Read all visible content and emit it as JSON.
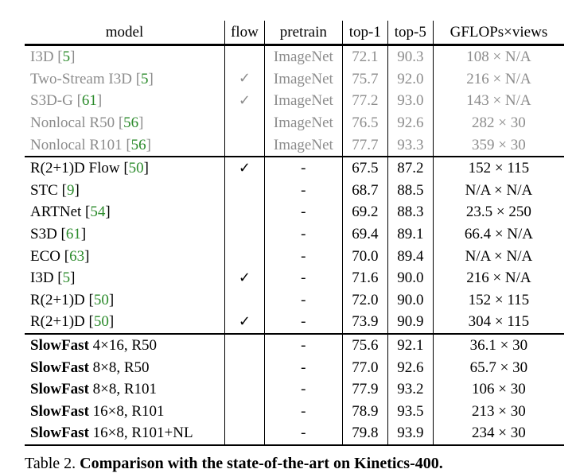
{
  "header": {
    "model": "model",
    "flow": "flow",
    "pretrain": "pretrain",
    "top1": "top-1",
    "top5": "top-5",
    "gflops": "GFLOPs×views"
  },
  "rows": [
    {
      "name": "I3D [",
      "ref": "5",
      "close": "]",
      "flow": "",
      "pretrain": "ImageNet",
      "top1": "72.1",
      "top5": "90.3",
      "gflops": "108 × N/A"
    },
    {
      "name": "Two-Stream I3D [",
      "ref": "5",
      "close": "]",
      "flow": "✓",
      "pretrain": "ImageNet",
      "top1": "75.7",
      "top5": "92.0",
      "gflops": "216 × N/A"
    },
    {
      "name": "S3D-G [",
      "ref": "61",
      "close": "]",
      "flow": "✓",
      "pretrain": "ImageNet",
      "top1": "77.2",
      "top5": "93.0",
      "gflops": "143 × N/A"
    },
    {
      "name": "Nonlocal R50 [",
      "ref": "56",
      "close": "]",
      "flow": "",
      "pretrain": "ImageNet",
      "top1": "76.5",
      "top5": "92.6",
      "gflops": "282 × 30"
    },
    {
      "name": "Nonlocal R101 [",
      "ref": "56",
      "close": "]",
      "flow": "",
      "pretrain": "ImageNet",
      "top1": "77.7",
      "top5": "93.3",
      "gflops": "359 × 30"
    },
    {
      "name": "R(2+1)D Flow [",
      "ref": "50",
      "close": "]",
      "flow": "✓",
      "pretrain": "-",
      "top1": "67.5",
      "top5": "87.2",
      "gflops": "152 × 115"
    },
    {
      "name": "STC [",
      "ref": "9",
      "close": "]",
      "flow": "",
      "pretrain": "-",
      "top1": "68.7",
      "top5": "88.5",
      "gflops": "N/A × N/A"
    },
    {
      "name": "ARTNet [",
      "ref": "54",
      "close": "]",
      "flow": "",
      "pretrain": "-",
      "top1": "69.2",
      "top5": "88.3",
      "gflops": "23.5 × 250"
    },
    {
      "name": "S3D [",
      "ref": "61",
      "close": "]",
      "flow": "",
      "pretrain": "-",
      "top1": "69.4",
      "top5": "89.1",
      "gflops": "66.4 × N/A"
    },
    {
      "name": "ECO [",
      "ref": "63",
      "close": "]",
      "flow": "",
      "pretrain": "-",
      "top1": "70.0",
      "top5": "89.4",
      "gflops": "N/A × N/A"
    },
    {
      "name": "I3D [",
      "ref": "5",
      "close": "]",
      "flow": "✓",
      "pretrain": "-",
      "top1": "71.6",
      "top5": "90.0",
      "gflops": "216 × N/A"
    },
    {
      "name": "R(2+1)D [",
      "ref": "50",
      "close": "]",
      "flow": "",
      "pretrain": "-",
      "top1": "72.0",
      "top5": "90.0",
      "gflops": "152 × 115"
    },
    {
      "name": "R(2+1)D [",
      "ref": "50",
      "close": "]",
      "flow": "✓",
      "pretrain": "-",
      "top1": "73.9",
      "top5": "90.9",
      "gflops": "304 × 115"
    },
    {
      "bold": "SlowFast",
      "name": " 4×16, R50",
      "flow": "",
      "pretrain": "-",
      "top1": "75.6",
      "top5": "92.1",
      "gflops": "36.1 × 30"
    },
    {
      "bold": "SlowFast",
      "name": " 8×8, R50",
      "flow": "",
      "pretrain": "-",
      "top1": "77.0",
      "top5": "92.6",
      "gflops": "65.7 × 30"
    },
    {
      "bold": "SlowFast",
      "name": " 8×8, R101",
      "flow": "",
      "pretrain": "-",
      "top1": "77.9",
      "top5": "93.2",
      "gflops": "106 × 30"
    },
    {
      "bold": "SlowFast",
      "name": " 16×8, R101",
      "flow": "",
      "pretrain": "-",
      "top1": "78.9",
      "top5": "93.5",
      "gflops": "213 × 30"
    },
    {
      "bold": "SlowFast",
      "name": " 16×8, R101+NL",
      "flow": "",
      "pretrain": "-",
      "top1": "79.8",
      "top5": "93.9",
      "gflops": "234 × 30"
    }
  ],
  "caption": {
    "label": "Table 2. ",
    "title": "Comparison with the state-of-the-art on Kinetics-400."
  },
  "colors": {
    "reference": "#2a8a2a",
    "muted": "#8c8c8c"
  }
}
